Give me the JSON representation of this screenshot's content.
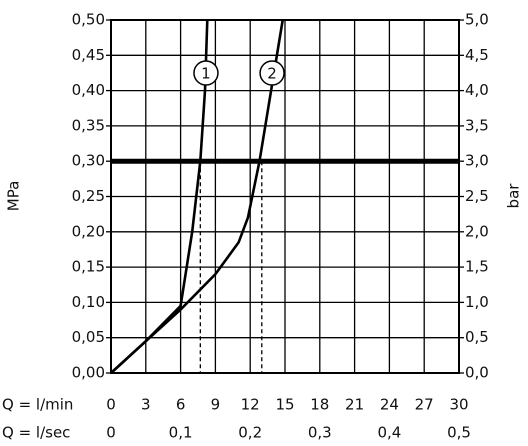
{
  "chart_data": {
    "type": "line",
    "y_label": "MPa",
    "y2_label": "bar",
    "x_label": "Q = l/min",
    "x2_label": "Q = l/sec",
    "xlim": [
      0,
      30
    ],
    "xticks": [
      0,
      3,
      6,
      9,
      12,
      15,
      18,
      21,
      24,
      27,
      30
    ],
    "x2lim": [
      0,
      0.5
    ],
    "x2ticks": [
      0,
      {
        "value": 0.1,
        "label": "0,1"
      },
      {
        "value": 0.2,
        "label": "0,2"
      },
      {
        "value": 0.3,
        "label": "0,3"
      },
      {
        "value": 0.4,
        "label": "0,4"
      },
      {
        "value": 0.5,
        "label": "0,5"
      }
    ],
    "ylim": [
      0,
      0.5
    ],
    "yticks": [
      {
        "value": 0,
        "label": "0,00"
      },
      {
        "value": 0.05,
        "label": "0,05"
      },
      {
        "value": 0.1,
        "label": "0,10"
      },
      {
        "value": 0.15,
        "label": "0,15"
      },
      {
        "value": 0.2,
        "label": "0,20"
      },
      {
        "value": 0.25,
        "label": "0,25"
      },
      {
        "value": 0.3,
        "label": "0,30"
      },
      {
        "value": 0.35,
        "label": "0,35"
      },
      {
        "value": 0.4,
        "label": "0,40"
      },
      {
        "value": 0.45,
        "label": "0,45"
      },
      {
        "value": 0.5,
        "label": "0,50"
      }
    ],
    "y2lim": [
      0,
      5
    ],
    "y2ticks": [
      {
        "value": 0,
        "label": "0,0"
      },
      {
        "value": 0.5,
        "label": "0,5"
      },
      {
        "value": 1,
        "label": "1,0"
      },
      {
        "value": 1.5,
        "label": "1,5"
      },
      {
        "value": 2,
        "label": "2,0"
      },
      {
        "value": 2.5,
        "label": "2,5"
      },
      {
        "value": 3,
        "label": "3,0"
      },
      {
        "value": 3.5,
        "label": "3,5"
      },
      {
        "value": 4,
        "label": "4,0"
      },
      {
        "value": 4.5,
        "label": "4,5"
      },
      {
        "value": 5,
        "label": "5,0"
      }
    ],
    "grid": true,
    "series": [
      {
        "name": "1",
        "color": "#000000",
        "x": [
          0,
          3,
          6,
          7,
          7.7,
          8.1,
          8.3
        ],
        "values": [
          0,
          0.045,
          0.095,
          0.2,
          0.3,
          0.4,
          0.5
        ]
      },
      {
        "name": "2",
        "color": "#000000",
        "x": [
          0,
          3,
          6,
          9,
          11,
          11.8,
          12.8,
          13.8,
          14.8
        ],
        "values": [
          0,
          0.045,
          0.09,
          0.14,
          0.185,
          0.22,
          0.3,
          0.4,
          0.5
        ]
      }
    ],
    "reference_y": 0.3,
    "drop_x": [
      7.7,
      13
    ]
  }
}
